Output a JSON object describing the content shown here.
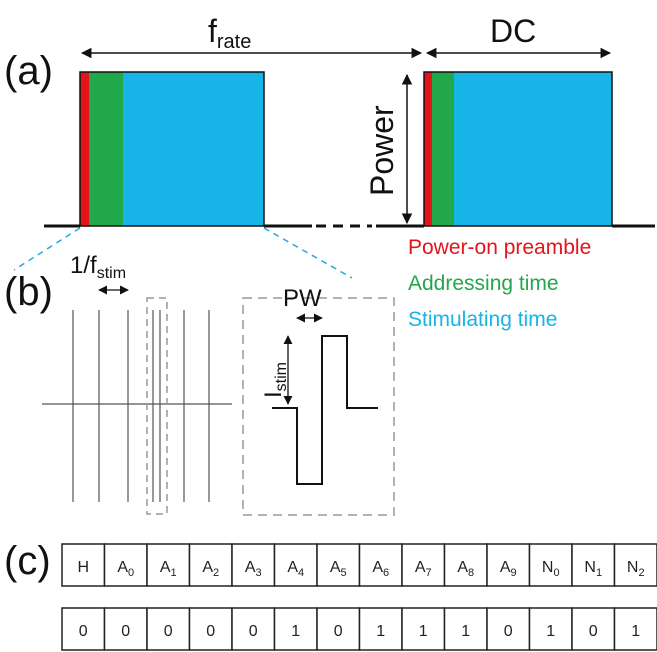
{
  "panels": {
    "a": "(a)",
    "b": "(b)",
    "c": "(c)"
  },
  "labels": {
    "frate_base": "f",
    "frate_sub": "rate",
    "dc": "DC",
    "power": "Power",
    "fstim_base": "1/f",
    "fstim_sub": "stim",
    "pw": "PW",
    "istim_base": "I",
    "istim_sub": "stim"
  },
  "legend": [
    {
      "text": "Power-on preamble",
      "color": "#e3141a"
    },
    {
      "text": "Addressing time",
      "color": "#21a84a"
    },
    {
      "text": "Stimulating time",
      "color": "#17b4e8"
    }
  ],
  "colors": {
    "preamble": "#e3141a",
    "addressing": "#21a84a",
    "stimulating": "#17b4e8",
    "dashed_link": "#29a8e0"
  },
  "packet": {
    "header": [
      {
        "base": "H",
        "sub": ""
      },
      {
        "base": "A",
        "sub": "0"
      },
      {
        "base": "A",
        "sub": "1"
      },
      {
        "base": "A",
        "sub": "2"
      },
      {
        "base": "A",
        "sub": "3"
      },
      {
        "base": "A",
        "sub": "4"
      },
      {
        "base": "A",
        "sub": "5"
      },
      {
        "base": "A",
        "sub": "6"
      },
      {
        "base": "A",
        "sub": "7"
      },
      {
        "base": "A",
        "sub": "8"
      },
      {
        "base": "A",
        "sub": "9"
      },
      {
        "base": "N",
        "sub": "0"
      },
      {
        "base": "N",
        "sub": "1"
      },
      {
        "base": "N",
        "sub": "2"
      }
    ],
    "bits": [
      "0",
      "0",
      "0",
      "0",
      "0",
      "1",
      "0",
      "1",
      "1",
      "1",
      "0",
      "1",
      "0",
      "1"
    ]
  }
}
